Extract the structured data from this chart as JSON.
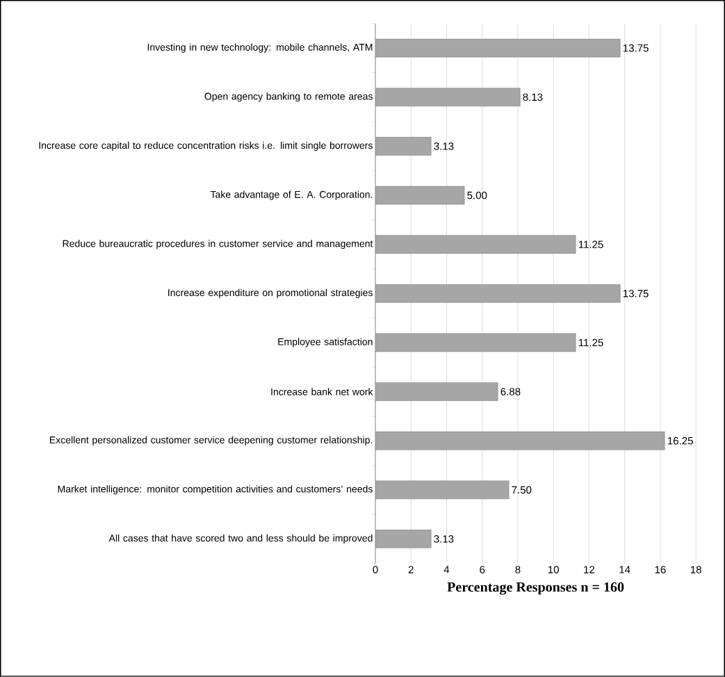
{
  "chart_data": {
    "type": "bar",
    "orientation": "horizontal",
    "xlabel": "Percentage Responses n = 160",
    "categories": [
      "Investing in new technology: mobile channels, ATM",
      "Open agency banking to remote areas",
      "Increase core capital to reduce concentration risks i.e. limit single borrowers",
      "Take advantage of E. A. Corporation.",
      "Reduce bureaucratic procedures in customer service and management",
      "Increase expenditure on promotional strategies",
      "Employee satisfaction",
      "Increase bank net work",
      "Excellent personalized customer service deepening customer relationship.",
      "Market intelligence: monitor competition activities and customers’ needs",
      "All cases that have scored two  and less should be improved"
    ],
    "values": [
      13.75,
      8.13,
      3.13,
      5.0,
      11.25,
      13.75,
      11.25,
      6.88,
      16.25,
      7.5,
      3.13
    ],
    "value_labels": [
      "13.75",
      "8.13",
      "3.13",
      "5.00",
      "11.25",
      "13.75",
      "11.25",
      "6.88",
      "16.25",
      "7.50",
      "3.13"
    ],
    "color": "#a6a6a6",
    "xlim": [
      0,
      18
    ],
    "xticks": [
      0,
      2,
      4,
      6,
      8,
      10,
      12,
      14,
      16,
      18
    ],
    "grid": "x"
  }
}
